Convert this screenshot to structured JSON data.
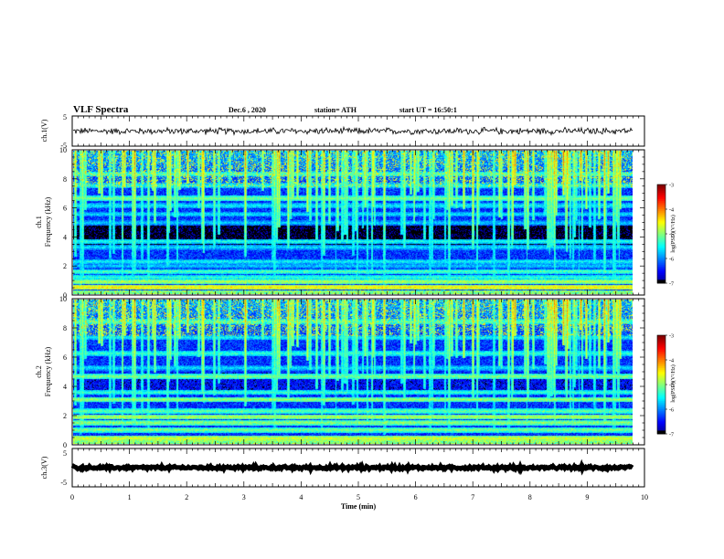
{
  "header": {
    "title": "VLF Spectra",
    "date": "Dec.6 , 2020",
    "station": "station= ATH",
    "start": "start UT = 16:50:1"
  },
  "chart_data": [
    {
      "type": "line",
      "panel": "ch1-waveform",
      "ylabel": "ch.1(V)",
      "ylim": [
        -5,
        5
      ],
      "yticks": [
        5,
        -5
      ],
      "xlim": [
        0,
        10
      ],
      "baseline_volts": 0,
      "noise_amplitude_volts": 0.9
    },
    {
      "type": "heatmap",
      "panel": "ch1-spectrogram",
      "ylabel_top": "ch.1",
      "ylabel": "Frequency (kHz)",
      "ylim": [
        0,
        10
      ],
      "yticks": [
        0,
        2,
        4,
        6,
        8,
        10
      ],
      "xlim": [
        0,
        9.85
      ],
      "colorbar": {
        "label": "log(PSD)(V²/Hz)",
        "range": [
          -7,
          -3
        ],
        "ticks": [
          -3,
          -4,
          -5,
          -6,
          -7
        ]
      },
      "bands_khz": [
        {
          "f": 0.5,
          "level": -4.4
        },
        {
          "f": 0.9,
          "level": -4.8
        },
        {
          "f": 1.2,
          "level": -5.3
        },
        {
          "f": 1.6,
          "level": -5.2
        },
        {
          "f": 2.0,
          "level": -5.7
        },
        {
          "f": 2.3,
          "level": -5.5
        },
        {
          "f": 3.3,
          "level": -5.6
        },
        {
          "f": 3.7,
          "level": -5.4
        },
        {
          "f": 5.0,
          "level": -5.7
        },
        {
          "f": 5.6,
          "level": -5.6
        },
        {
          "f": 6.2,
          "level": -5.5
        },
        {
          "f": 6.7,
          "level": -5.0
        },
        {
          "f": 7.6,
          "level": -5.4
        },
        {
          "f": 8.4,
          "level": -5.2
        }
      ]
    },
    {
      "type": "heatmap",
      "panel": "ch2-spectrogram",
      "ylabel_top": "ch.2",
      "ylabel": "Frequency (kHz)",
      "ylim": [
        0,
        10
      ],
      "yticks": [
        0,
        2,
        4,
        6,
        8,
        10
      ],
      "xlim": [
        0,
        9.85
      ],
      "colorbar": {
        "label": "log(PSD)(V²/Hz)",
        "range": [
          -7,
          -3
        ],
        "ticks": [
          -3,
          -4,
          -5,
          -6,
          -7
        ]
      },
      "bands_khz": [
        {
          "f": 0.4,
          "level": -4.6
        },
        {
          "f": 1.0,
          "level": -5.0
        },
        {
          "f": 1.5,
          "level": -4.9
        },
        {
          "f": 1.9,
          "level": -4.8
        },
        {
          "f": 2.3,
          "level": -5.1
        },
        {
          "f": 3.1,
          "level": -4.9
        },
        {
          "f": 3.6,
          "level": -5.3
        },
        {
          "f": 4.7,
          "level": -5.0
        },
        {
          "f": 5.3,
          "level": -5.6
        },
        {
          "f": 6.3,
          "level": -5.3
        },
        {
          "f": 7.4,
          "level": -5.5
        },
        {
          "f": 8.5,
          "level": -5.2
        }
      ]
    },
    {
      "type": "line",
      "panel": "ch3-waveform",
      "ylabel": "ch.3(V)",
      "ylim": [
        -5,
        5
      ],
      "yticks": [
        5,
        -5
      ],
      "xlim": [
        0,
        10
      ],
      "baseline_volts": 0,
      "noise_amplitude_volts": 0.3
    }
  ],
  "xaxis": {
    "label": "Time (min)",
    "ticks": [
      "0",
      "1",
      "2",
      "3",
      "4",
      "5",
      "6",
      "7",
      "8",
      "9",
      "10"
    ],
    "range": [
      0,
      10
    ]
  }
}
